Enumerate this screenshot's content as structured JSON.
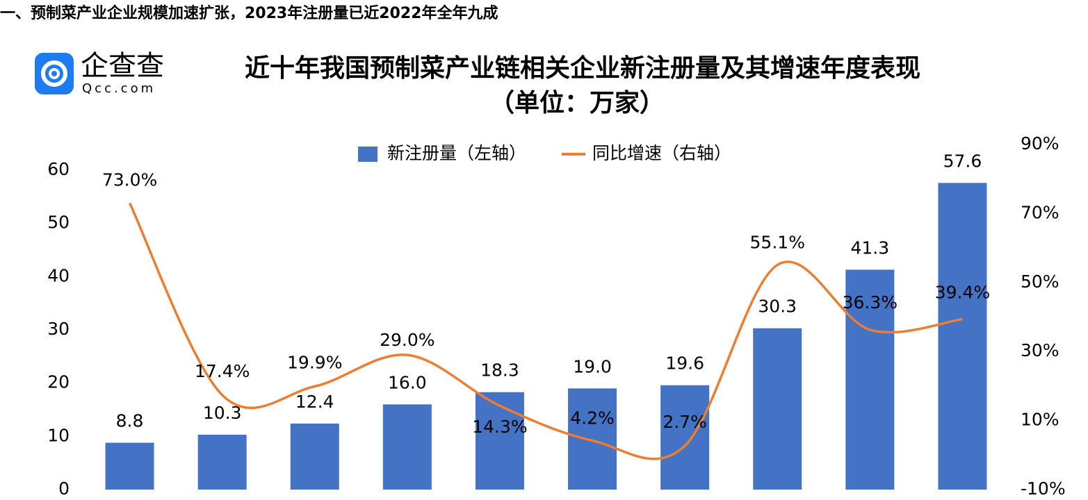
{
  "header": "一、预制菜产业企业规模加速扩张，2023年注册量已近2022年全年九成",
  "logo": {
    "name": "企查查",
    "domain": "Qcc.com"
  },
  "chart_data": {
    "type": "bar-line",
    "title": "近十年我国预制菜产业链相关企业新注册量及其增速年度表现",
    "subtitle": "（单位：万家）",
    "categories": [
      null,
      null,
      null,
      null,
      null,
      null,
      null,
      null,
      null,
      null
    ],
    "series": [
      {
        "name": "新注册量（左轴）",
        "type": "bar",
        "color": "#4472c4",
        "values": [
          8.8,
          10.3,
          12.4,
          16.0,
          18.3,
          19.0,
          19.6,
          30.3,
          41.3,
          57.6
        ],
        "value_labels": [
          "8.8",
          "10.3",
          "12.4",
          "16.0",
          "18.3",
          "19.0",
          "19.6",
          "30.3",
          "41.3",
          "57.6"
        ]
      },
      {
        "name": "同比增速（右轴）",
        "type": "line",
        "axis": "y2",
        "color": "#ed7d31",
        "values": [
          73.0,
          17.4,
          19.9,
          29.0,
          14.3,
          4.2,
          2.7,
          55.1,
          36.3,
          39.4
        ],
        "value_labels": [
          "73.0%",
          "17.4%",
          "19.9%",
          "29.0%",
          "14.3%",
          "4.2%",
          "2.7%",
          "55.1%",
          "36.3%",
          "39.4%"
        ]
      }
    ],
    "ylim": [
      0,
      60
    ],
    "yticks": [
      0,
      10,
      20,
      30,
      40,
      50,
      60
    ],
    "y2lim": [
      -10,
      90
    ],
    "y2ticks": [
      {
        "value": -10,
        "label": "-10%"
      },
      {
        "value": 10,
        "label": "10%"
      },
      {
        "value": 30,
        "label": "30%"
      },
      {
        "value": 50,
        "label": "50%"
      },
      {
        "value": 70,
        "label": "70%"
      },
      {
        "value": 90,
        "label": "90%"
      }
    ],
    "legend": "top"
  }
}
